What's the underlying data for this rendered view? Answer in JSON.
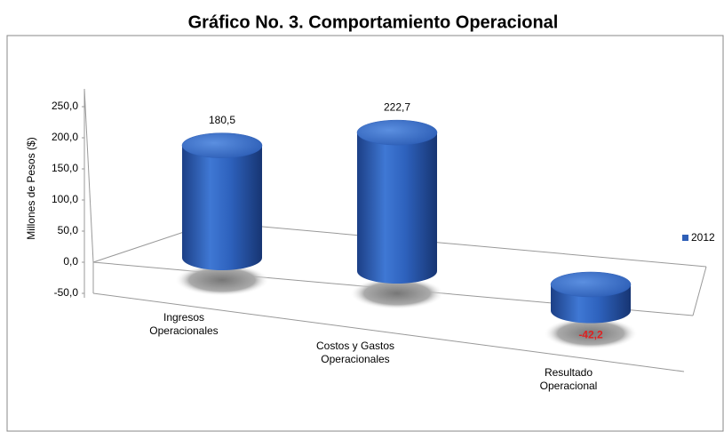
{
  "chart_data": {
    "type": "bar3d",
    "title": "Gráfico No. 3. Comportamiento Operacional",
    "y_label": "Millones de Pesos ($)",
    "categories": [
      "Ingresos\nOperacionales",
      "Costos y Gastos\nOperacionales",
      "Resultado\nOperacional"
    ],
    "series": [
      {
        "name": "2012",
        "color": "#2e5fb7",
        "values": [
          180.5,
          222.7,
          -42.2
        ],
        "value_labels": [
          "180,5",
          "222,7",
          "-42,2"
        ]
      }
    ],
    "negative_label_color": "#e02020",
    "ylim": [
      -50,
      250
    ],
    "yticks": [
      {
        "value": -50,
        "label": "-50,0"
      },
      {
        "value": 0,
        "label": "0,0"
      },
      {
        "value": 50,
        "label": "50,0"
      },
      {
        "value": 100,
        "label": "100,0"
      },
      {
        "value": 150,
        "label": "150,0"
      },
      {
        "value": 200,
        "label": "200,0"
      },
      {
        "value": 250,
        "label": "250,0"
      }
    ],
    "legend": "right"
  }
}
